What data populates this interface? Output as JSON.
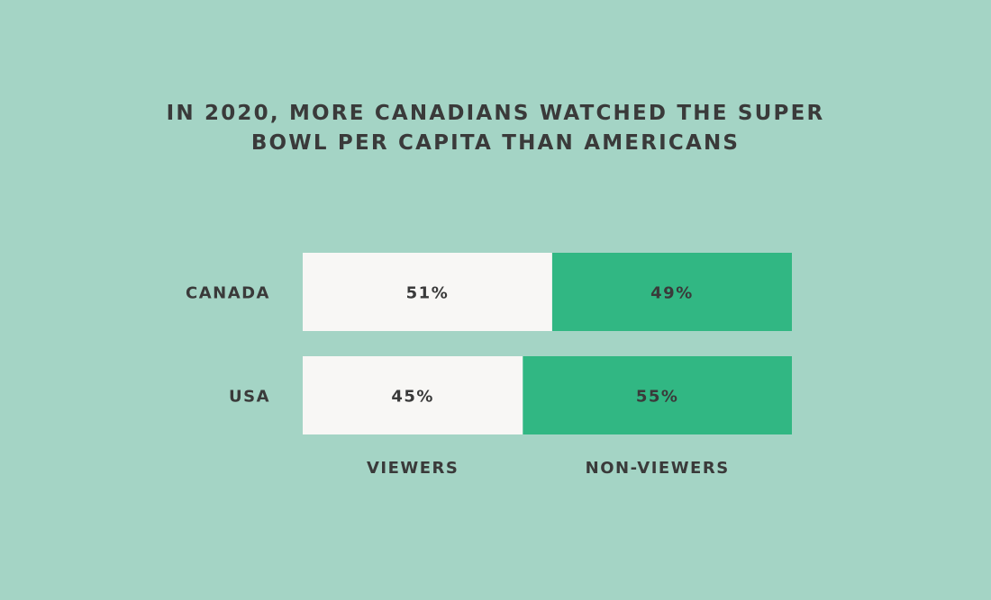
{
  "chart_data": {
    "type": "bar",
    "stacked": true,
    "orientation": "horizontal",
    "percent_stacked": true,
    "title_lines": [
      "IN 2020, MORE CANADIANS WATCHED THE SUPER",
      "BOWL PER CAPITA THAN AMERICANS"
    ],
    "categories": [
      "CANADA",
      "USA"
    ],
    "series": [
      {
        "name": "VIEWERS",
        "values": [
          51,
          45
        ],
        "labels": [
          "51%",
          "45%"
        ],
        "color": "#f8f7f5"
      },
      {
        "name": "NON-VIEWERS",
        "values": [
          49,
          55
        ],
        "labels": [
          "49%",
          "55%"
        ],
        "color": "#31b783"
      }
    ],
    "xlim": [
      0,
      100
    ],
    "grid": false,
    "legend_placement": "bottom",
    "background": "#a4d4c5",
    "text_color": "#3a3a3a"
  }
}
